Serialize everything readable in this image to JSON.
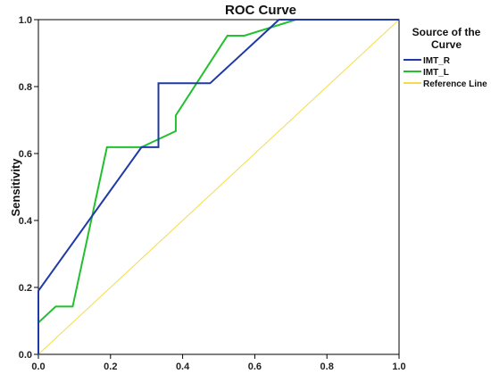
{
  "chart_data": {
    "type": "line",
    "title": "ROC Curve",
    "xlabel": "",
    "ylabel": "Sensitivity",
    "xlim": [
      0,
      1
    ],
    "ylim": [
      0,
      1
    ],
    "x_ticks": [
      "0.0",
      "0.2",
      "0.4",
      "0.6",
      "0.8",
      "1.0"
    ],
    "y_ticks": [
      "0.0",
      "0.2",
      "0.4",
      "0.6",
      "0.8",
      "1.0"
    ],
    "grid": false,
    "legend": {
      "placement": "right",
      "title_lines": [
        "Source of the",
        "Curve"
      ]
    },
    "series": [
      {
        "name": "IMT_R",
        "color": "#1f3aa8",
        "points": [
          [
            0,
            0
          ],
          [
            0,
            0.19
          ],
          [
            0.286,
            0.619
          ],
          [
            0.333,
            0.619
          ],
          [
            0.333,
            0.81
          ],
          [
            0.476,
            0.81
          ],
          [
            0.619,
            0.952
          ],
          [
            0.667,
            1.0
          ],
          [
            1.0,
            1.0
          ]
        ]
      },
      {
        "name": "IMT_L",
        "color": "#22c02e",
        "points": [
          [
            0,
            0
          ],
          [
            0,
            0.095
          ],
          [
            0.048,
            0.143
          ],
          [
            0.095,
            0.143
          ],
          [
            0.19,
            0.619
          ],
          [
            0.286,
            0.619
          ],
          [
            0.381,
            0.667
          ],
          [
            0.381,
            0.714
          ],
          [
            0.524,
            0.952
          ],
          [
            0.571,
            0.952
          ],
          [
            0.714,
            1.0
          ],
          [
            1.0,
            1.0
          ]
        ]
      },
      {
        "name": "Reference Line",
        "color": "#f2dc4a",
        "points": [
          [
            0,
            0
          ],
          [
            1,
            1
          ]
        ]
      }
    ]
  }
}
